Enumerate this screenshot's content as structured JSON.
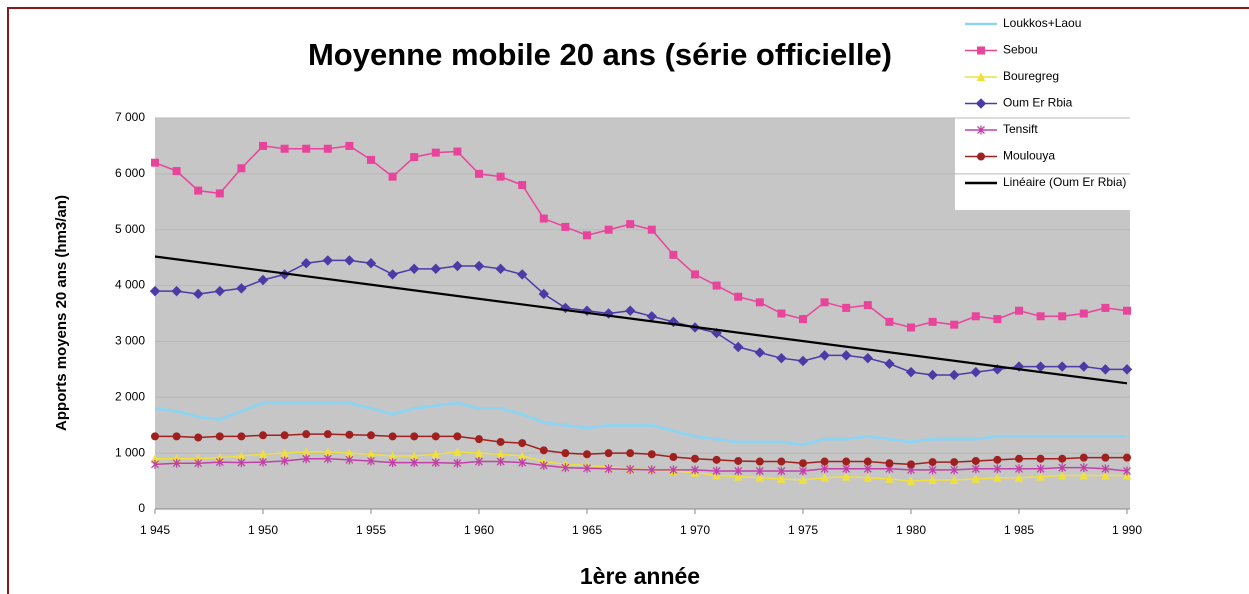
{
  "chart_data": {
    "type": "line",
    "title": "Moyenne mobile 20 ans (série officielle)",
    "x_label": "1ère année",
    "y_label": "Apports moyens 20 ans (hm3/an)",
    "x": [
      1945,
      1946,
      1947,
      1948,
      1949,
      1950,
      1951,
      1952,
      1953,
      1954,
      1955,
      1956,
      1957,
      1958,
      1959,
      1960,
      1961,
      1962,
      1963,
      1964,
      1965,
      1966,
      1967,
      1968,
      1969,
      1970,
      1971,
      1972,
      1973,
      1974,
      1975,
      1976,
      1977,
      1978,
      1979,
      1980,
      1981,
      1982,
      1983,
      1984,
      1985,
      1986,
      1987,
      1988,
      1989,
      1990
    ],
    "xlim": [
      1945,
      1990
    ],
    "xticks": [
      {
        "value": 1945,
        "label": "1 945"
      },
      {
        "value": 1950,
        "label": "1 950"
      },
      {
        "value": 1955,
        "label": "1 955"
      },
      {
        "value": 1960,
        "label": "1 960"
      },
      {
        "value": 1965,
        "label": "1 965"
      },
      {
        "value": 1970,
        "label": "1 970"
      },
      {
        "value": 1975,
        "label": "1 975"
      },
      {
        "value": 1980,
        "label": "1 980"
      },
      {
        "value": 1985,
        "label": "1 985"
      },
      {
        "value": 1990,
        "label": "1 990"
      }
    ],
    "ylim": [
      0,
      7000
    ],
    "yticks": [
      0,
      {
        "value": 1000,
        "label": "1 000"
      },
      {
        "value": 2000,
        "label": "2 000"
      },
      {
        "value": 3000,
        "label": "3 000"
      },
      {
        "value": 4000,
        "label": "4 000"
      },
      {
        "value": 5000,
        "label": "5 000"
      },
      {
        "value": 6000,
        "label": "6 000"
      },
      {
        "value": 7000,
        "label": "7 000"
      }
    ],
    "grid": true,
    "legend": "top-right",
    "series": [
      {
        "name": "Loukkos+Laou",
        "color": "#8fd3f0",
        "marker": "none",
        "values": [
          1800,
          1750,
          1650,
          1600,
          1750,
          1900,
          1900,
          1900,
          1900,
          1900,
          1800,
          1700,
          1800,
          1850,
          1900,
          1800,
          1800,
          1700,
          1550,
          1500,
          1450,
          1500,
          1500,
          1500,
          1400,
          1300,
          1250,
          1200,
          1200,
          1200,
          1150,
          1250,
          1250,
          1300,
          1250,
          1200,
          1250,
          1250,
          1250,
          1300,
          1300,
          1300,
          1300,
          1300,
          1300,
          1300
        ]
      },
      {
        "name": "Sebou",
        "color": "#e8449b",
        "marker": "square",
        "values": [
          6200,
          6050,
          5700,
          5650,
          6100,
          6500,
          6450,
          6450,
          6450,
          6500,
          6250,
          5950,
          6300,
          6380,
          6400,
          6000,
          5950,
          5800,
          5200,
          5050,
          4900,
          5000,
          5100,
          5000,
          4550,
          4200,
          4000,
          3800,
          3700,
          3500,
          3400,
          3700,
          3600,
          3650,
          3350,
          3250,
          3350,
          3300,
          3450,
          3400,
          3550,
          3450,
          3450,
          3500,
          3600,
          3550
        ]
      },
      {
        "name": "Bouregreg",
        "color": "#eee040",
        "marker": "triangle",
        "values": [
          900,
          900,
          900,
          920,
          950,
          980,
          1000,
          1020,
          1020,
          1000,
          980,
          950,
          950,
          980,
          1020,
          1000,
          980,
          950,
          850,
          800,
          780,
          750,
          720,
          700,
          680,
          650,
          600,
          580,
          560,
          540,
          520,
          560,
          580,
          560,
          540,
          500,
          520,
          520,
          540,
          560,
          560,
          580,
          600,
          600,
          600,
          600
        ]
      },
      {
        "name": "Oum Er Rbia",
        "color": "#4b3ba6",
        "marker": "diamond",
        "values": [
          3900,
          3900,
          3850,
          3900,
          3950,
          4100,
          4200,
          4400,
          4450,
          4450,
          4400,
          4200,
          4300,
          4300,
          4350,
          4350,
          4300,
          4200,
          3850,
          3600,
          3550,
          3500,
          3550,
          3450,
          3350,
          3250,
          3150,
          2900,
          2800,
          2700,
          2650,
          2750,
          2750,
          2700,
          2600,
          2450,
          2400,
          2400,
          2450,
          2500,
          2550,
          2550,
          2550,
          2550,
          2500,
          2500
        ]
      },
      {
        "name": "Tensift",
        "color": "#c040a8",
        "marker": "star",
        "values": [
          800,
          820,
          820,
          840,
          830,
          840,
          860,
          900,
          900,
          880,
          860,
          830,
          830,
          830,
          820,
          850,
          850,
          830,
          780,
          740,
          730,
          720,
          710,
          700,
          700,
          700,
          680,
          680,
          680,
          680,
          680,
          720,
          720,
          720,
          720,
          700,
          700,
          700,
          720,
          720,
          720,
          720,
          740,
          740,
          720,
          680
        ]
      },
      {
        "name": "Moulouya",
        "color": "#a02020",
        "marker": "circle",
        "values": [
          1300,
          1300,
          1280,
          1300,
          1300,
          1320,
          1320,
          1340,
          1340,
          1330,
          1320,
          1300,
          1300,
          1300,
          1300,
          1250,
          1200,
          1180,
          1050,
          1000,
          980,
          1000,
          1000,
          980,
          930,
          900,
          880,
          860,
          850,
          850,
          820,
          850,
          850,
          850,
          820,
          800,
          840,
          840,
          860,
          880,
          900,
          900,
          900,
          920,
          920,
          920
        ]
      },
      {
        "name": "Linéaire (Oum Er Rbia)",
        "color": "#000000",
        "marker": "none",
        "x": [
          1945,
          1990
        ],
        "values": [
          4520,
          2250
        ]
      }
    ]
  }
}
